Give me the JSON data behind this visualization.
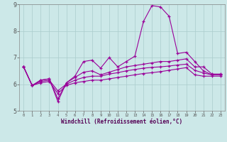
{
  "xlabel": "Windchill (Refroidissement éolien,°C)",
  "background_color": "#cce8e8",
  "grid_color": "#aacccc",
  "line_color": "#990099",
  "xlim": [
    -0.5,
    23.5
  ],
  "ylim": [
    5,
    9
  ],
  "yticks": [
    5,
    6,
    7,
    8,
    9
  ],
  "xticks": [
    0,
    1,
    2,
    3,
    4,
    5,
    6,
    7,
    8,
    9,
    10,
    11,
    12,
    13,
    14,
    15,
    16,
    17,
    18,
    19,
    20,
    21,
    22,
    23
  ],
  "series1_x": [
    0,
    1,
    2,
    3,
    4,
    5,
    6,
    7,
    8,
    9,
    10,
    11,
    12,
    13,
    14,
    15,
    16,
    17,
    18,
    19,
    20,
    21,
    22,
    23
  ],
  "series1_y": [
    6.65,
    5.95,
    6.15,
    6.2,
    5.35,
    6.05,
    6.3,
    6.85,
    6.9,
    6.6,
    7.0,
    6.65,
    6.85,
    7.05,
    8.35,
    8.95,
    8.9,
    8.55,
    7.15,
    7.2,
    6.85,
    6.5,
    6.35,
    6.35
  ],
  "series2_x": [
    0,
    1,
    2,
    3,
    4,
    5,
    6,
    7,
    8,
    9,
    10,
    11,
    12,
    13,
    14,
    15,
    16,
    17,
    18,
    19,
    20,
    21,
    22,
    23
  ],
  "series2_y": [
    6.65,
    5.95,
    6.15,
    6.2,
    5.45,
    6.05,
    6.25,
    6.45,
    6.5,
    6.35,
    6.45,
    6.55,
    6.65,
    6.7,
    6.75,
    6.8,
    6.85,
    6.85,
    6.9,
    6.95,
    6.65,
    6.65,
    6.38,
    6.38
  ],
  "series3_x": [
    0,
    1,
    2,
    3,
    4,
    5,
    6,
    7,
    8,
    9,
    10,
    11,
    12,
    13,
    14,
    15,
    16,
    17,
    18,
    19,
    20,
    21,
    22,
    23
  ],
  "series3_y": [
    6.65,
    5.95,
    6.1,
    6.15,
    5.75,
    6.0,
    6.15,
    6.25,
    6.3,
    6.3,
    6.38,
    6.43,
    6.5,
    6.55,
    6.6,
    6.63,
    6.65,
    6.68,
    6.72,
    6.75,
    6.52,
    6.42,
    6.35,
    6.35
  ],
  "series4_x": [
    0,
    1,
    2,
    3,
    4,
    5,
    6,
    7,
    8,
    9,
    10,
    11,
    12,
    13,
    14,
    15,
    16,
    17,
    18,
    19,
    20,
    21,
    22,
    23
  ],
  "series4_y": [
    6.65,
    5.95,
    6.05,
    6.1,
    5.65,
    5.95,
    6.05,
    6.1,
    6.15,
    6.15,
    6.2,
    6.25,
    6.3,
    6.35,
    6.4,
    6.43,
    6.47,
    6.52,
    6.57,
    6.62,
    6.35,
    6.3,
    6.3,
    6.3
  ]
}
